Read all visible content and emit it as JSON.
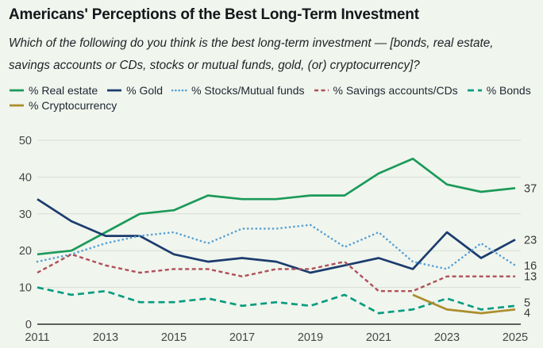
{
  "page": {
    "background": "#f0f5ee"
  },
  "header": {
    "title": "Americans' Perceptions of the Best Long-Term Investment",
    "subtitle_line1": "Which of the following do you think is the best long-term investment — [bonds, real estate,",
    "subtitle_line2": "savings accounts or CDs, stocks or mutual funds, gold, (or) cryptocurrency]?"
  },
  "chart_data": {
    "type": "line",
    "x": [
      2011,
      2012,
      2013,
      2014,
      2015,
      2016,
      2017,
      2018,
      2019,
      2020,
      2021,
      2022,
      2023,
      2024,
      2025
    ],
    "x_tick_labels": [
      "2011",
      "2013",
      "2015",
      "2017",
      "2019",
      "2021",
      "2023",
      "2025"
    ],
    "y_ticks": [
      0,
      10,
      20,
      30,
      40,
      50
    ],
    "ylim": [
      0,
      50
    ],
    "grid": "horizontal-only",
    "legend_position": "top-left, two rows",
    "series": [
      {
        "name": "% Real estate",
        "color": "#1c9a59",
        "style": "solid",
        "end_label": "37",
        "values": [
          19,
          20,
          25,
          30,
          31,
          35,
          34,
          34,
          35,
          35,
          41,
          45,
          38,
          36,
          37
        ]
      },
      {
        "name": "% Gold",
        "color": "#1c3c6e",
        "style": "solid",
        "end_label": "23",
        "values": [
          34,
          28,
          24,
          24,
          19,
          17,
          18,
          17,
          14,
          16,
          18,
          15,
          25,
          18,
          23
        ]
      },
      {
        "name": "% Stocks/Mutual funds",
        "color": "#57a0d3",
        "style": "dotted",
        "end_label": "16",
        "values": [
          17,
          19,
          22,
          24,
          25,
          22,
          26,
          26,
          27,
          21,
          25,
          17,
          15,
          22,
          16
        ]
      },
      {
        "name": "% Savings accounts/CDs",
        "color": "#b04f58",
        "style": "dashed",
        "end_label": "13",
        "values": [
          14,
          19,
          16,
          14,
          15,
          15,
          13,
          15,
          15,
          17,
          9,
          9,
          13,
          13,
          13
        ]
      },
      {
        "name": "% Bonds",
        "color": "#069c7f",
        "style": "long-dash",
        "end_label": "5",
        "values": [
          10,
          8,
          9,
          6,
          6,
          7,
          5,
          6,
          5,
          8,
          3,
          4,
          7,
          4,
          5
        ]
      },
      {
        "name": "% Cryptocurrency",
        "color": "#ad8d2c",
        "style": "solid",
        "end_label": "4",
        "values": [
          null,
          null,
          null,
          null,
          null,
          null,
          null,
          null,
          null,
          null,
          null,
          8,
          4,
          3,
          4
        ]
      }
    ]
  },
  "axis": {
    "grid_color": "#d8ddd4",
    "axis_line_color": "#2d2d2d",
    "tick_text_color": "#474747",
    "end_label_color": "#383838"
  }
}
